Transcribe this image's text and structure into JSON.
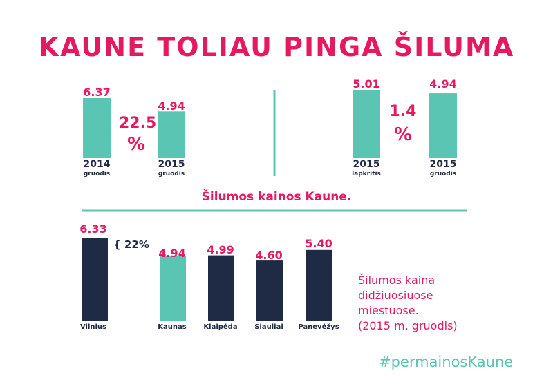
{
  "title": "KAUNE TOLIAU PINGA ŠILUMA",
  "colors": {
    "pink": "#e5195f",
    "teal": "#5bc5b4",
    "navy": "#1f2a44"
  },
  "section_caption": "Šilumos kainos Kaune.",
  "comparison_left": {
    "bars": [
      {
        "value": "6.37",
        "year": "2014",
        "month": "gruodis"
      },
      {
        "value": "4.94",
        "year": "2015",
        "month": "gruodis"
      }
    ],
    "change_number": "22.5",
    "change_unit": "%"
  },
  "comparison_right": {
    "bars": [
      {
        "value": "5.01",
        "year": "2015",
        "month": "lapkritis"
      },
      {
        "value": "4.94",
        "year": "2015",
        "month": "gruodis"
      }
    ],
    "change_number": "1.4",
    "change_unit": "%"
  },
  "bracket_note": "{ 22%",
  "caption_cities": [
    "Šilumos kaina",
    "didžiuosiuose",
    "miestuose.",
    "(2015 m. gruodis)"
  ],
  "hashtag": "#permainosKaune",
  "chart_data": [
    {
      "type": "bar",
      "categories": [
        "2014 gruodis",
        "2015 gruodis"
      ],
      "values": [
        6.37,
        4.94
      ],
      "ylim": [
        0,
        6.37
      ]
    },
    {
      "type": "bar",
      "categories": [
        "2015 lapkritis",
        "2015 gruodis"
      ],
      "values": [
        5.01,
        4.94
      ],
      "ylim": [
        4.6,
        5.01
      ]
    },
    {
      "type": "bar",
      "categories": [
        "Vilnius",
        "Kaunas",
        "Klaipėda",
        "Šiauliai",
        "Panevėžys"
      ],
      "values": [
        6.33,
        4.94,
        4.99,
        4.6,
        5.4
      ],
      "ylim": [
        0,
        6.33
      ]
    }
  ]
}
